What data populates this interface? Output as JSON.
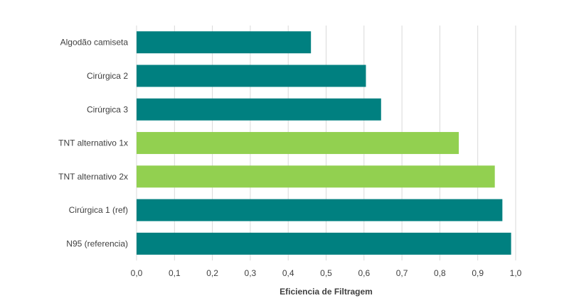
{
  "chart_data": {
    "type": "bar",
    "orientation": "horizontal",
    "categories": [
      "Algodão camiseta",
      "Cirúrgica 2",
      "Cirúrgica 3",
      "TNT alternativo 1x",
      "TNT alternativo 2x",
      "Cirúrgica 1 (ref)",
      "N95 (referencia)"
    ],
    "values": [
      0.46,
      0.605,
      0.645,
      0.85,
      0.945,
      0.965,
      0.988
    ],
    "bar_colors": [
      "#008080",
      "#008080",
      "#008080",
      "#92D050",
      "#92D050",
      "#008080",
      "#008080"
    ],
    "xlabel": "Eficiencia de Filtragem",
    "ylabel": "",
    "xlim": [
      0.0,
      1.0
    ],
    "x_ticks": [
      "0,0",
      "0,1",
      "0,2",
      "0,3",
      "0,4",
      "0,5",
      "0,6",
      "0,7",
      "0,8",
      "0,9",
      "1,0"
    ],
    "grid": true,
    "legend": false
  }
}
